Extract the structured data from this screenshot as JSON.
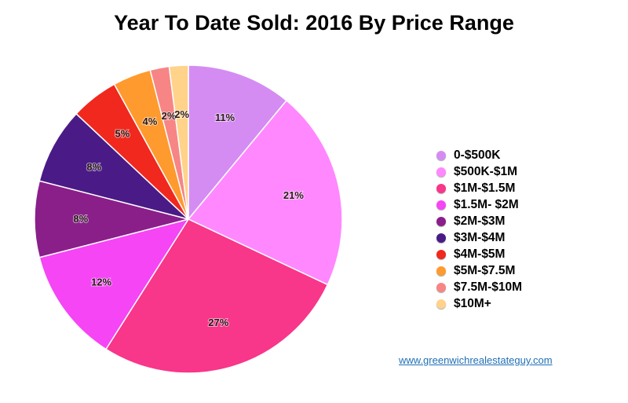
{
  "title": "Year To Date Sold: 2016 By Price Range",
  "website": "www.greenwichrealestateguy.com",
  "chart_data": {
    "type": "pie",
    "title": "Year To Date Sold: 2016 By Price Range",
    "legend_position": "right",
    "categories": [
      "0-$500K",
      "$500K-$1M",
      "$1M-$1.5M",
      "$1.5M- $2M",
      "$2M-$3M",
      "$3M-$4M",
      "$4M-$5M",
      "$5M-$7.5M",
      "$7.5M-$10M",
      "$10M+"
    ],
    "values": [
      11,
      21,
      27,
      12,
      8,
      8,
      5,
      4,
      2,
      2
    ],
    "labels": [
      "11%",
      "21%",
      "27%",
      "12%",
      "8%",
      "8%",
      "5%",
      "4%",
      "2%",
      "2%"
    ],
    "colors": [
      "#d48cf2",
      "#ff88ff",
      "#f8368a",
      "#f545f5",
      "#8a1f8a",
      "#4a1b86",
      "#f0281e",
      "#ff9a2e",
      "#f78585",
      "#ffd38a"
    ]
  }
}
